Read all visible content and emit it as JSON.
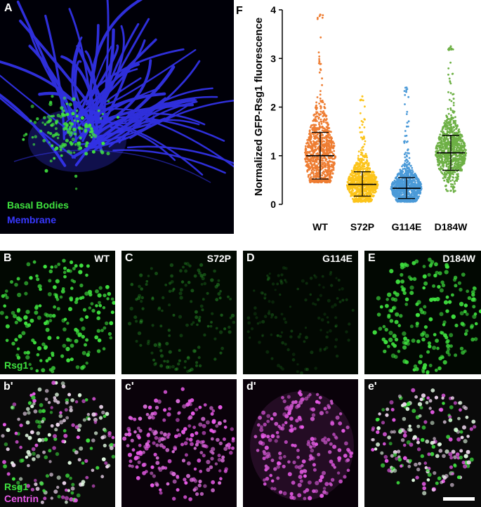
{
  "panel_a": {
    "letter": "A",
    "legend": [
      {
        "text": "Basal Bodies",
        "color": "#3fe23f"
      },
      {
        "text": "Membrane",
        "color": "#3838ff"
      }
    ]
  },
  "panels_top": [
    {
      "letter": "B",
      "tag": "WT",
      "channel": "Rsg1"
    },
    {
      "letter": "C",
      "tag": "S72P"
    },
    {
      "letter": "D",
      "tag": "G114E"
    },
    {
      "letter": "E",
      "tag": "D184W"
    }
  ],
  "panels_bottom": [
    {
      "letter": "b'",
      "channel1": "Rsg1",
      "channel2": "Centrin"
    },
    {
      "letter": "c'"
    },
    {
      "letter": "d'"
    },
    {
      "letter": "e'"
    }
  ],
  "colors": {
    "green": "#3fe23f",
    "magenta": "#e85ae8",
    "blue": "#3838ff",
    "wt": "#ee7d32",
    "s72p": "#fcc41a",
    "g114e": "#4b9ad8",
    "d184w": "#6db045"
  },
  "chart_data": {
    "type": "scatter",
    "panel_letter": "F",
    "ylabel": "Normalized GFP-Rsg1 fluorescence",
    "xlabel": "",
    "ylim": [
      0,
      4
    ],
    "yticks": [
      "0",
      "1",
      "2",
      "3",
      "4"
    ],
    "categories": [
      "WT",
      "S72P",
      "G114E",
      "D184W"
    ],
    "series": [
      {
        "name": "WT",
        "mean": 1.0,
        "sd_low": 0.52,
        "sd_high": 1.48,
        "min": 0.45,
        "max": 3.9
      },
      {
        "name": "S72P",
        "mean": 0.41,
        "sd_low": 0.17,
        "sd_high": 0.67,
        "min": 0.05,
        "max": 2.22
      },
      {
        "name": "G114E",
        "mean": 0.33,
        "sd_low": 0.12,
        "sd_high": 0.55,
        "min": 0.05,
        "max": 2.4
      },
      {
        "name": "D184W",
        "mean": 1.06,
        "sd_low": 0.7,
        "sd_high": 1.42,
        "min": 0.25,
        "max": 3.25
      }
    ]
  }
}
